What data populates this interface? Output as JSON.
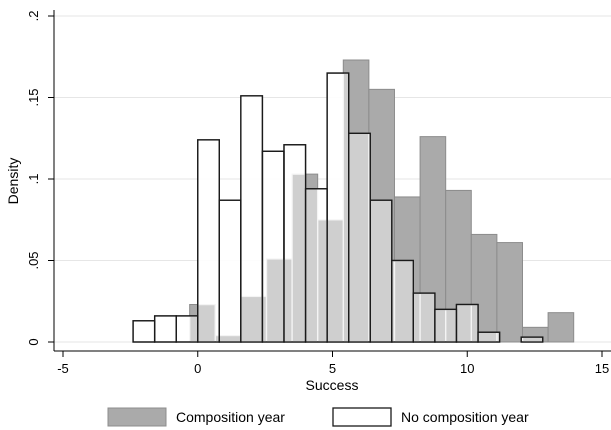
{
  "chart_data": {
    "type": "bar",
    "xlabel": "Success",
    "ylabel": "Density",
    "xlim": [
      -5,
      15
    ],
    "ylim": [
      0,
      0.2
    ],
    "x_ticks": [
      -5,
      0,
      5,
      10,
      15
    ],
    "x_tick_labels": [
      "-5",
      "0",
      "5",
      "10",
      "15"
    ],
    "y_ticks": [
      0,
      0.05,
      0.1,
      0.15,
      0.2
    ],
    "y_tick_labels": [
      "0",
      ".05",
      ".1",
      ".15",
      ".2"
    ],
    "grid": true,
    "legend_placement": "bottom",
    "bin_width": 0.95,
    "series": [
      {
        "name": "Composition year",
        "fill": "#aaaaaa",
        "stroke": "#8c8c8c",
        "bins": [
          {
            "start": -0.3,
            "value": 0.023
          },
          {
            "start": 0.65,
            "value": 0.004
          },
          {
            "start": 1.6,
            "value": 0.028
          },
          {
            "start": 2.55,
            "value": 0.051
          },
          {
            "start": 3.5,
            "value": 0.103
          },
          {
            "start": 4.45,
            "value": 0.075
          },
          {
            "start": 5.4,
            "value": 0.173
          },
          {
            "start": 6.35,
            "value": 0.155
          },
          {
            "start": 7.3,
            "value": 0.089
          },
          {
            "start": 8.25,
            "value": 0.126
          },
          {
            "start": 9.2,
            "value": 0.093
          },
          {
            "start": 10.15,
            "value": 0.066
          },
          {
            "start": 11.1,
            "value": 0.061
          },
          {
            "start": 12.05,
            "value": 0.009
          },
          {
            "start": 13.0,
            "value": 0.018
          }
        ]
      },
      {
        "name": "No composition year",
        "fill": "#ffffff",
        "stroke": "#1a1a1a",
        "bins": [
          {
            "start": -2.4,
            "value": 0.013
          },
          {
            "start": -1.6,
            "value": 0.016
          },
          {
            "start": -0.8,
            "value": 0.016
          },
          {
            "start": 0.0,
            "value": 0.124
          },
          {
            "start": 0.8,
            "value": 0.087
          },
          {
            "start": 1.6,
            "value": 0.151
          },
          {
            "start": 2.4,
            "value": 0.117
          },
          {
            "start": 3.2,
            "value": 0.121
          },
          {
            "start": 4.0,
            "value": 0.094
          },
          {
            "start": 4.8,
            "value": 0.165
          },
          {
            "start": 5.6,
            "value": 0.128
          },
          {
            "start": 6.4,
            "value": 0.087
          },
          {
            "start": 7.2,
            "value": 0.05
          },
          {
            "start": 8.0,
            "value": 0.03
          },
          {
            "start": 8.8,
            "value": 0.02
          },
          {
            "start": 9.6,
            "value": 0.023
          },
          {
            "start": 10.4,
            "value": 0.006
          },
          {
            "start": 11.2,
            "value": 0.0
          },
          {
            "start": 12.0,
            "value": 0.003
          }
        ]
      }
    ],
    "overlap_fill": "#cfcfcf"
  }
}
